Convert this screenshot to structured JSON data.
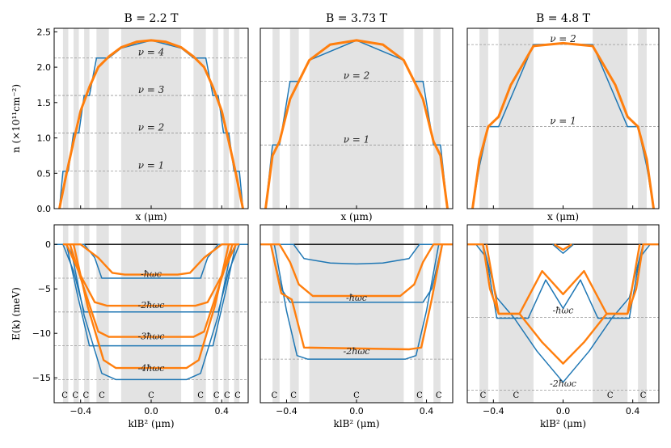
{
  "chart_data": [
    {
      "type": "line",
      "title": "B = 2.2 T",
      "ylabel": "n (×10¹¹cm⁻²)",
      "xlabel": "x (μm)",
      "xlim": [
        -0.55,
        0.55
      ],
      "ylim": [
        0,
        2.55
      ],
      "yticks": [
        "0.0",
        "0.5",
        "1.0",
        "1.5",
        "2.0",
        "2.5"
      ],
      "xticks": [],
      "grey_bands": [
        [
          -0.5,
          -0.47
        ],
        [
          -0.44,
          -0.41
        ],
        [
          -0.38,
          -0.35
        ],
        [
          -0.31,
          -0.24
        ],
        [
          -0.17,
          0.17
        ],
        [
          0.24,
          0.31
        ],
        [
          0.35,
          0.38
        ],
        [
          0.41,
          0.44
        ],
        [
          0.47,
          0.5
        ]
      ],
      "filling_levels": [
        {
          "label": "ν = 1",
          "value": 0.53
        },
        {
          "label": "ν = 2",
          "value": 1.07
        },
        {
          "label": "ν = 3",
          "value": 1.6
        },
        {
          "label": "ν = 4",
          "value": 2.13
        }
      ],
      "series": [
        {
          "color": "#1f77b4",
          "x": [
            -0.52,
            -0.5,
            -0.47,
            -0.44,
            -0.41,
            -0.38,
            -0.35,
            -0.31,
            -0.24,
            -0.17,
            0.0,
            0.17,
            0.24,
            0.31,
            0.35,
            0.38,
            0.41,
            0.44,
            0.47,
            0.5,
            0.52
          ],
          "y": [
            0.0,
            0.53,
            0.53,
            1.07,
            1.07,
            1.6,
            1.6,
            2.13,
            2.13,
            2.27,
            2.38,
            2.27,
            2.13,
            2.13,
            1.6,
            1.6,
            1.07,
            1.07,
            0.53,
            0.53,
            0.0
          ]
        },
        {
          "color": "#ff7f0e",
          "x": [
            -0.52,
            -0.48,
            -0.44,
            -0.4,
            -0.35,
            -0.3,
            -0.24,
            -0.17,
            -0.08,
            0.0,
            0.08,
            0.17,
            0.24,
            0.3,
            0.35,
            0.4,
            0.44,
            0.48,
            0.52
          ],
          "y": [
            0.0,
            0.5,
            0.95,
            1.38,
            1.72,
            2.0,
            2.15,
            2.28,
            2.36,
            2.38,
            2.36,
            2.28,
            2.15,
            2.0,
            1.72,
            1.38,
            0.95,
            0.5,
            0.0
          ]
        }
      ]
    },
    {
      "type": "line",
      "title": "B = 3.73 T",
      "xlabel": "x (μm)",
      "xlim": [
        -0.55,
        0.55
      ],
      "ylim": [
        0,
        2.55
      ],
      "yticks": [],
      "xticks": [],
      "grey_bands": [
        [
          -0.48,
          -0.44
        ],
        [
          -0.38,
          -0.33
        ],
        [
          -0.27,
          0.27
        ],
        [
          0.33,
          0.38
        ],
        [
          0.44,
          0.48
        ]
      ],
      "filling_levels": [
        {
          "label": "ν = 1",
          "value": 0.9
        },
        {
          "label": "ν = 2",
          "value": 1.8
        }
      ],
      "series": [
        {
          "color": "#1f77b4",
          "x": [
            -0.52,
            -0.48,
            -0.44,
            -0.38,
            -0.33,
            -0.27,
            0.0,
            0.27,
            0.33,
            0.38,
            0.44,
            0.48,
            0.52
          ],
          "y": [
            0.0,
            0.9,
            0.9,
            1.8,
            1.8,
            2.1,
            2.38,
            2.1,
            1.8,
            1.8,
            0.9,
            0.9,
            0.0
          ]
        },
        {
          "color": "#ff7f0e",
          "x": [
            -0.52,
            -0.48,
            -0.44,
            -0.38,
            -0.33,
            -0.27,
            -0.15,
            0.0,
            0.15,
            0.27,
            0.33,
            0.38,
            0.44,
            0.48,
            0.52
          ],
          "y": [
            0.0,
            0.75,
            0.95,
            1.55,
            1.8,
            2.1,
            2.32,
            2.38,
            2.32,
            2.1,
            1.8,
            1.55,
            0.95,
            0.75,
            0.0
          ]
        }
      ]
    },
    {
      "type": "line",
      "title": "B = 4.8 T",
      "xlabel": "x (μm)",
      "xlim": [
        -0.55,
        0.55
      ],
      "ylim": [
        0,
        2.55
      ],
      "yticks": [],
      "xticks": [],
      "grey_bands": [
        [
          -0.48,
          -0.43
        ],
        [
          -0.37,
          -0.17
        ],
        [
          0.17,
          0.37
        ],
        [
          0.43,
          0.48
        ]
      ],
      "filling_levels": [
        {
          "label": "ν = 1",
          "value": 1.16
        },
        {
          "label": "ν = 2",
          "value": 2.32
        }
      ],
      "series": [
        {
          "color": "#1f77b4",
          "x": [
            -0.52,
            -0.48,
            -0.43,
            -0.37,
            -0.17,
            0.0,
            0.17,
            0.37,
            0.43,
            0.48,
            0.52
          ],
          "y": [
            0.0,
            0.6,
            1.16,
            1.16,
            2.32,
            2.33,
            2.32,
            1.16,
            1.16,
            0.6,
            0.0
          ]
        },
        {
          "color": "#ff7f0e",
          "x": [
            -0.52,
            -0.48,
            -0.43,
            -0.37,
            -0.3,
            -0.17,
            0.0,
            0.17,
            0.3,
            0.37,
            0.43,
            0.48,
            0.52
          ],
          "y": [
            0.0,
            0.7,
            1.16,
            1.3,
            1.75,
            2.3,
            2.34,
            2.3,
            1.75,
            1.3,
            1.16,
            0.7,
            0.0
          ]
        }
      ]
    },
    {
      "type": "line",
      "ylabel": "E(k) (meV)",
      "xlabel": "klB² (μm)",
      "xlim": [
        -0.55,
        0.55
      ],
      "ylim": [
        -17.8,
        2.2
      ],
      "yticks": [
        "0",
        "−5",
        "−10",
        "−15"
      ],
      "xticks": [
        "−0.4",
        "0.0",
        "0.4"
      ],
      "grey_bands": [
        [
          -0.5,
          -0.47
        ],
        [
          -0.44,
          -0.41
        ],
        [
          -0.38,
          -0.35
        ],
        [
          -0.31,
          -0.24
        ],
        [
          -0.17,
          0.17
        ],
        [
          0.24,
          0.31
        ],
        [
          0.35,
          0.38
        ],
        [
          0.41,
          0.44
        ],
        [
          0.47,
          0.5
        ]
      ],
      "reference_levels": [
        -3.8,
        -7.6,
        -11.4,
        -15.2
      ],
      "band_labels": [
        {
          "text": "-ħωc",
          "y": -3.3
        },
        {
          "text": "-2ħωc",
          "y": -6.8
        },
        {
          "text": "-3ħωc",
          "y": -10.3
        },
        {
          "text": "-4ħωc",
          "y": -13.9
        }
      ],
      "compressible_labels": [
        {
          "text": "C",
          "x": -0.49
        },
        {
          "text": "C",
          "x": -0.43
        },
        {
          "text": "C",
          "x": -0.37
        },
        {
          "text": "C",
          "x": -0.28
        },
        {
          "text": "C",
          "x": 0.0
        },
        {
          "text": "C",
          "x": 0.28
        },
        {
          "text": "C",
          "x": 0.37
        },
        {
          "text": "C",
          "x": 0.43
        },
        {
          "text": "C",
          "x": 0.49
        }
      ],
      "series": [
        {
          "color": "#1f77b4",
          "x": [
            -0.55,
            -0.45,
            -0.38,
            -0.32,
            -0.28,
            0.28,
            0.32,
            0.38,
            0.45,
            0.55
          ],
          "y": [
            0,
            0,
            0,
            -1.5,
            -3.8,
            -3.8,
            -1.5,
            0,
            0,
            0
          ]
        },
        {
          "color": "#1f77b4",
          "x": [
            -0.5,
            -0.44,
            -0.38,
            -0.34,
            0.34,
            0.38,
            0.44,
            0.5
          ],
          "y": [
            0,
            -3.0,
            -7.6,
            -7.6,
            -7.6,
            -7.6,
            -3.0,
            0
          ]
        },
        {
          "color": "#1f77b4",
          "x": [
            -0.48,
            -0.42,
            -0.35,
            -0.3,
            0.3,
            0.35,
            0.42,
            0.48
          ],
          "y": [
            0,
            -5.5,
            -11.4,
            -11.4,
            -11.4,
            -11.4,
            -5.5,
            0
          ]
        },
        {
          "color": "#1f77b4",
          "x": [
            -0.46,
            -0.38,
            -0.28,
            -0.2,
            0.2,
            0.28,
            0.38,
            0.46
          ],
          "y": [
            0,
            -8.0,
            -14.5,
            -15.2,
            -15.2,
            -14.5,
            -8.0,
            0
          ]
        },
        {
          "color": "#ff7f0e",
          "x": [
            -0.5,
            -0.4,
            -0.3,
            -0.22,
            -0.15,
            0.15,
            0.22,
            0.3,
            0.4,
            0.5
          ],
          "y": [
            0,
            0,
            -1.5,
            -3.2,
            -3.4,
            -3.4,
            -3.2,
            -1.5,
            0,
            0
          ]
        },
        {
          "color": "#ff7f0e",
          "x": [
            -0.48,
            -0.4,
            -0.32,
            -0.25,
            0.25,
            0.32,
            0.4,
            0.48
          ],
          "y": [
            0,
            -3.5,
            -6.5,
            -6.9,
            -6.9,
            -6.5,
            -3.5,
            0
          ]
        },
        {
          "color": "#ff7f0e",
          "x": [
            -0.46,
            -0.38,
            -0.3,
            -0.24,
            0.24,
            0.3,
            0.38,
            0.46
          ],
          "y": [
            0,
            -5.0,
            -9.8,
            -10.4,
            -10.4,
            -9.8,
            -5.0,
            0
          ]
        },
        {
          "color": "#ff7f0e",
          "x": [
            -0.44,
            -0.36,
            -0.27,
            -0.2,
            0.2,
            0.27,
            0.36,
            0.44
          ],
          "y": [
            0,
            -7.0,
            -13.0,
            -13.9,
            -13.9,
            -13.0,
            -7.0,
            0
          ]
        }
      ]
    },
    {
      "type": "line",
      "xlabel": "klB² (μm)",
      "xlim": [
        -0.55,
        0.55
      ],
      "ylim": [
        -17.8,
        2.2
      ],
      "yticks": [],
      "xticks": [
        "−0.4",
        "0.0",
        "0.4"
      ],
      "grey_bands": [
        [
          -0.48,
          -0.44
        ],
        [
          -0.38,
          -0.33
        ],
        [
          -0.27,
          0.27
        ],
        [
          0.33,
          0.38
        ],
        [
          0.44,
          0.48
        ]
      ],
      "reference_levels": [
        -6.5,
        -12.9
      ],
      "band_labels": [
        {
          "text": "-ħωc",
          "y": -6.0
        },
        {
          "text": "-2ħωc",
          "y": -12.0
        }
      ],
      "compressible_labels": [
        {
          "text": "C",
          "x": -0.47
        },
        {
          "text": "C",
          "x": -0.36
        },
        {
          "text": "C",
          "x": 0.0
        },
        {
          "text": "C",
          "x": 0.36
        },
        {
          "text": "C",
          "x": 0.47
        }
      ],
      "series": [
        {
          "color": "#1f77b4",
          "x": [
            -0.55,
            -0.36,
            -0.3,
            -0.15,
            0.0,
            0.15,
            0.3,
            0.36,
            0.55
          ],
          "y": [
            0,
            0,
            -1.6,
            -2.1,
            -2.2,
            -2.1,
            -1.6,
            0,
            0
          ]
        },
        {
          "color": "#1f77b4",
          "x": [
            -0.49,
            -0.43,
            -0.38,
            -0.33,
            0.33,
            0.38,
            0.43,
            0.49
          ],
          "y": [
            0,
            -5.0,
            -6.5,
            -6.5,
            -6.5,
            -6.5,
            -5.0,
            0
          ]
        },
        {
          "color": "#1f77b4",
          "x": [
            -0.47,
            -0.4,
            -0.34,
            -0.28,
            0.28,
            0.34,
            0.4,
            0.47
          ],
          "y": [
            0,
            -7.5,
            -12.5,
            -12.9,
            -12.9,
            -12.5,
            -7.5,
            0
          ]
        },
        {
          "color": "#ff7f0e",
          "x": [
            -0.55,
            -0.44,
            -0.38,
            -0.33,
            -0.25,
            0.25,
            0.33,
            0.38,
            0.44,
            0.55
          ],
          "y": [
            0,
            0,
            -2.0,
            -4.5,
            -5.8,
            -5.8,
            -4.5,
            -2.0,
            0,
            0
          ]
        },
        {
          "color": "#ff7f0e",
          "x": [
            -0.49,
            -0.43,
            -0.37,
            -0.3,
            0.3,
            0.37,
            0.43,
            0.49
          ],
          "y": [
            0,
            -5.5,
            -6.2,
            -11.6,
            -11.8,
            -11.6,
            -6.2,
            0
          ]
        }
      ]
    },
    {
      "type": "line",
      "xlabel": "klB² (μm)",
      "xlim": [
        -0.55,
        0.55
      ],
      "ylim": [
        -17.8,
        2.2
      ],
      "yticks": [],
      "xticks": [
        "−0.4",
        "0.0",
        "0.4"
      ],
      "grey_bands": [
        [
          -0.48,
          -0.43
        ],
        [
          -0.37,
          -0.17
        ],
        [
          0.17,
          0.37
        ],
        [
          0.43,
          0.48
        ]
      ],
      "reference_levels": [
        -8.2,
        -16.4
      ],
      "band_labels": [
        {
          "text": "-ħωc",
          "y": -7.4
        },
        {
          "text": "-2ħωc",
          "y": -15.6
        }
      ],
      "compressible_labels": [
        {
          "text": "C",
          "x": -0.46
        },
        {
          "text": "C",
          "x": -0.27
        },
        {
          "text": "C",
          "x": 0.27
        },
        {
          "text": "C",
          "x": 0.46
        }
      ],
      "series": [
        {
          "color": "#1f77b4",
          "x": [
            -0.5,
            -0.44,
            -0.38,
            -0.2,
            -0.1,
            0.0,
            0.1,
            0.2,
            0.38,
            0.44,
            0.5
          ],
          "y": [
            0,
            -1.5,
            -8.3,
            -8.3,
            -4.0,
            -7.2,
            -4.0,
            -8.3,
            -8.3,
            -1.5,
            0
          ]
        },
        {
          "color": "#1f77b4",
          "x": [
            -0.46,
            -0.38,
            -0.28,
            -0.15,
            0.0,
            0.15,
            0.28,
            0.38,
            0.46
          ],
          "y": [
            0,
            -6.0,
            -8.3,
            -12.0,
            -15.5,
            -12.0,
            -8.3,
            -6.0,
            0
          ]
        },
        {
          "color": "#1f77b4",
          "x": [
            -0.06,
            0.0,
            0.06
          ],
          "y": [
            0,
            -1.0,
            0
          ]
        },
        {
          "color": "#ff7f0e",
          "x": [
            -0.55,
            -0.46,
            -0.42,
            -0.37,
            -0.25,
            -0.12,
            0.0,
            0.12,
            0.25,
            0.37,
            0.42,
            0.46,
            0.55
          ],
          "y": [
            0,
            0,
            -5.0,
            -7.8,
            -7.8,
            -3.0,
            -5.6,
            -3.0,
            -7.8,
            -7.8,
            -5.0,
            0,
            0
          ]
        },
        {
          "color": "#ff7f0e",
          "x": [
            -0.44,
            -0.37,
            -0.25,
            -0.12,
            0.0,
            0.12,
            0.25,
            0.37,
            0.44
          ],
          "y": [
            0,
            -7.8,
            -7.8,
            -11.0,
            -13.4,
            -11.0,
            -7.8,
            -7.8,
            0
          ]
        },
        {
          "color": "#ff7f0e",
          "x": [
            -0.05,
            0.0,
            0.05
          ],
          "y": [
            0,
            -0.6,
            0
          ]
        }
      ]
    }
  ]
}
